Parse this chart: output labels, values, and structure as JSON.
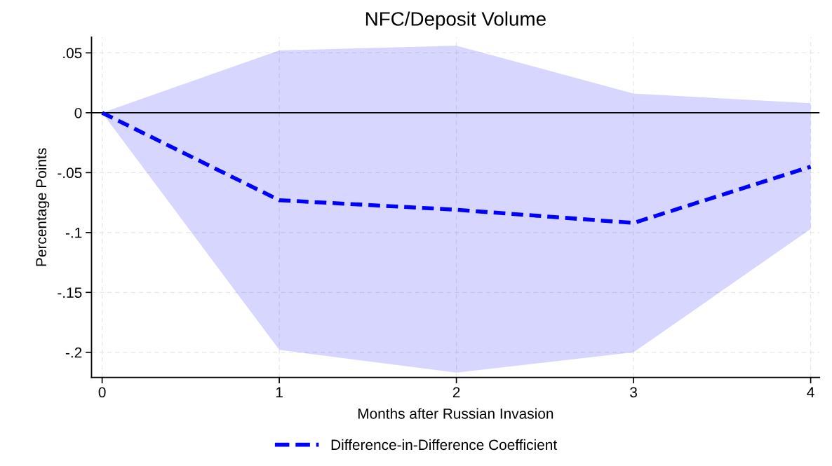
{
  "chart_data": {
    "type": "line",
    "title": "NFC/Deposit Volume",
    "xlabel": "Months after Russian Invasion",
    "ylabel": "Percentage Points",
    "x": [
      0,
      1,
      2,
      3,
      4
    ],
    "series": [
      {
        "name": "Difference-in-Difference Coefficient",
        "color": "#0000ff",
        "values": [
          0,
          -0.073,
          -0.081,
          -0.092,
          -0.045
        ],
        "lower": [
          0,
          -0.198,
          -0.217,
          -0.2,
          -0.097
        ],
        "upper": [
          0,
          0.052,
          0.056,
          0.016,
          0.008
        ]
      }
    ],
    "line_style": "dashed",
    "marker": "none",
    "xlim": [
      -0.06,
      4.05
    ],
    "ylim": [
      -0.221,
      0.063
    ],
    "xticks": [
      0,
      1,
      2,
      3,
      4
    ],
    "yticks": [
      {
        "value": 0.05,
        "label": ".05"
      },
      0,
      {
        "value": -0.05,
        "label": "-.05"
      },
      {
        "value": -0.1,
        "label": "-.1"
      },
      {
        "value": -0.15,
        "label": "-.15"
      },
      {
        "value": -0.2,
        "label": "-.2"
      }
    ],
    "ref_lines": [
      {
        "axis": "y",
        "value": 0,
        "color": "#000000",
        "line_style": "solid"
      }
    ],
    "grid": true,
    "legend": "bottom"
  }
}
